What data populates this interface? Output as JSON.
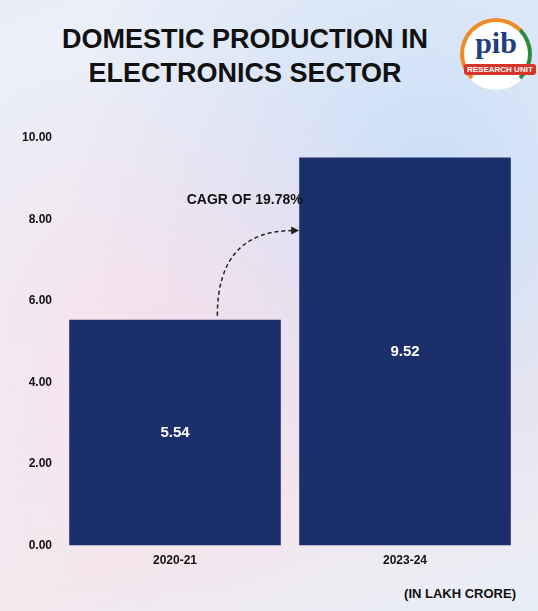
{
  "chart_data": {
    "type": "bar",
    "title": "DOMESTIC PRODUCTION IN ELECTRONICS SECTOR",
    "categories": [
      "2020-21",
      "2023-24"
    ],
    "values": [
      5.54,
      9.52
    ],
    "color": "#1b2f6b",
    "ylim": [
      0,
      10
    ],
    "yticks": [
      {
        "value": 0,
        "label": "0.00"
      },
      {
        "value": 2,
        "label": "2.00"
      },
      {
        "value": 4,
        "label": "4.00"
      },
      {
        "value": 6,
        "label": "6.00"
      },
      {
        "value": 8,
        "label": "8.00"
      },
      {
        "value": 10,
        "label": "10.00"
      }
    ],
    "grid": false,
    "data_labels": true,
    "annotation": "CAGR OF 19.78%",
    "note": "(IN LAKH CRORE)",
    "logo_text": [
      "pib",
      "RESEARCH UNIT"
    ]
  }
}
